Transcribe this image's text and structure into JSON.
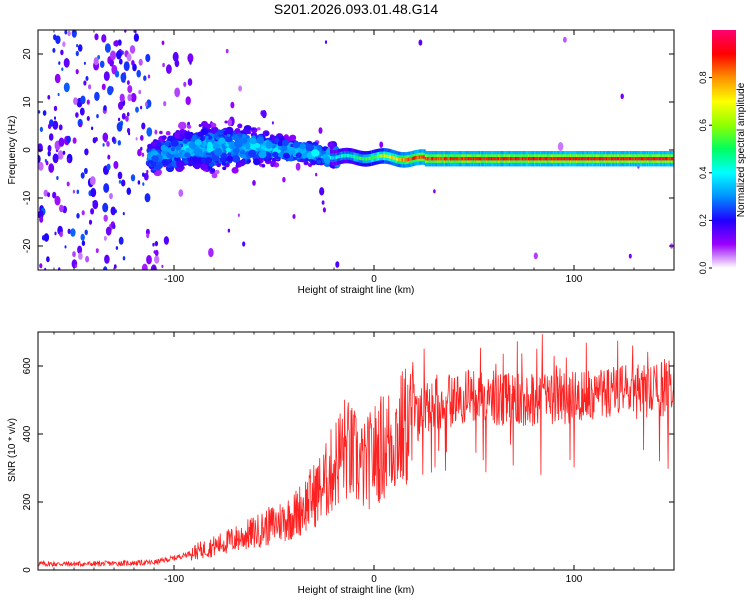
{
  "title": "S201.2026.093.01.48.G14",
  "chart_data": [
    {
      "type": "heatmap",
      "name": "spectrogram",
      "xlabel": "Height of straight line (km)",
      "ylabel": "Frequency (Hz)",
      "xlim": [
        -168,
        150
      ],
      "ylim": [
        -25,
        25
      ],
      "xticks": [
        -100,
        0,
        100
      ],
      "yticks": [
        -20,
        -10,
        0,
        10,
        20
      ],
      "colorbar": {
        "label": "Normalized spectral amplitude",
        "range": [
          0,
          1
        ],
        "ticks": [
          0.0,
          0.2,
          0.4,
          0.6,
          0.8
        ],
        "colors": [
          "#ffffff",
          "#9a00ff",
          "#2000ff",
          "#0090ff",
          "#00ffff",
          "#00ff60",
          "#90ff00",
          "#ffff00",
          "#ff9000",
          "#ff0000",
          "#ff0070"
        ]
      },
      "signal_track": [
        {
          "x": -112,
          "y": -1.5,
          "amp": 0.25
        },
        {
          "x": -90,
          "y": 0.5,
          "amp": 0.3
        },
        {
          "x": -60,
          "y": 0.5,
          "amp": 0.3
        },
        {
          "x": -30,
          "y": -0.5,
          "amp": 0.3
        },
        {
          "x": -20,
          "y": -1.5,
          "amp": 0.35
        },
        {
          "x": 0,
          "y": -1.5,
          "amp": 0.55
        },
        {
          "x": 20,
          "y": -1.8,
          "amp": 0.85
        },
        {
          "x": 100,
          "y": -1.8,
          "amp": 0.9
        },
        {
          "x": 150,
          "y": -1.8,
          "amp": 0.9
        }
      ]
    },
    {
      "type": "line",
      "name": "snr",
      "xlabel": "Height of straight line (km)",
      "ylabel": "SNR (10 * v/v)",
      "xlim": [
        -168,
        150
      ],
      "ylim": [
        0,
        700
      ],
      "xticks": [
        -100,
        0,
        100
      ],
      "yticks": [
        0,
        200,
        400,
        600
      ],
      "color": "#ff2020",
      "series": [
        {
          "name": "SNR",
          "x": [
            -168,
            -140,
            -110,
            -100,
            -80,
            -60,
            -40,
            -25,
            -15,
            -5,
            0,
            10,
            20,
            30,
            50,
            70,
            100,
            120,
            150
          ],
          "values": [
            18,
            18,
            22,
            35,
            70,
            110,
            160,
            250,
            360,
            300,
            340,
            390,
            440,
            490,
            510,
            500,
            510,
            525,
            530
          ]
        }
      ]
    }
  ]
}
